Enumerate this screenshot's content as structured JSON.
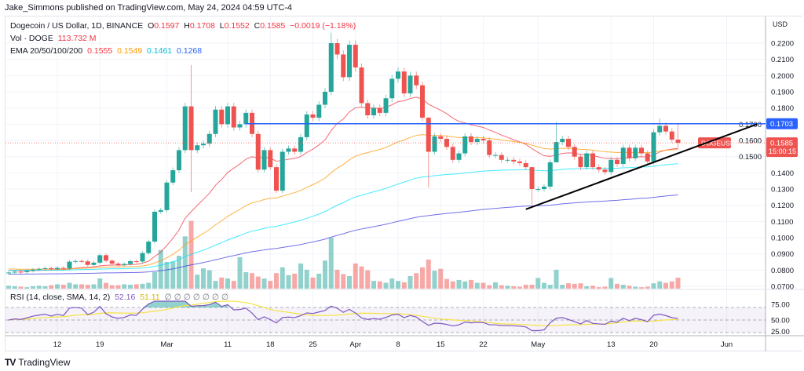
{
  "header": {
    "published": "Jake_Simmons published on TradingView.com, May 24, 2024 04:59 UTC-4"
  },
  "legend": {
    "symbol": "Dogecoin / US Dollar, 1D, BINANCE",
    "o_label": "O",
    "o": "0.1597",
    "h_label": "H",
    "h": "0.1708",
    "l_label": "L",
    "l": "0.1552",
    "c_label": "C",
    "c": "0.1585",
    "change": "−0.0019 (−1.18%)",
    "vol_label": "Vol · DOGE",
    "vol": "113.732 M",
    "ema_label": "EMA 20/50/100/200",
    "ema20": "0.1555",
    "ema50": "0.1549",
    "ema100": "0.1461",
    "ema200": "0.1268"
  },
  "rsi_legend": {
    "label": "RSI (14, close, SMA, 14, 2)",
    "rsi": "52.16",
    "sma": "51.11",
    "na": "∅"
  },
  "price_axis": {
    "currency": "USD",
    "ticks": [
      "0.2200",
      "0.2100",
      "0.2000",
      "0.1900",
      "0.1800",
      "0.1700",
      "0.1600",
      "0.1500",
      "0.1400",
      "0.1300",
      "0.1200",
      "0.1100",
      "0.1000",
      "0.0900",
      "0.0800",
      "0.0700"
    ],
    "level_label": "0.1703",
    "last_price": "0.1585",
    "countdown": "15:00:15",
    "symbol_tag": "DOGEUSD"
  },
  "rsi_axis": {
    "ticks": [
      "75.00",
      "50.00",
      "25.00"
    ]
  },
  "time_axis": {
    "ticks": [
      {
        "label": "12",
        "date": "2024-02-12"
      },
      {
        "label": "19",
        "date": "2024-02-19"
      },
      {
        "label": "Mar",
        "date": "2024-03-01"
      },
      {
        "label": "11",
        "date": "2024-03-11"
      },
      {
        "label": "18",
        "date": "2024-03-18"
      },
      {
        "label": "25",
        "date": "2024-03-25"
      },
      {
        "label": "Apr",
        "date": "2024-04-01"
      },
      {
        "label": "8",
        "date": "2024-04-08"
      },
      {
        "label": "15",
        "date": "2024-04-15"
      },
      {
        "label": "22",
        "date": "2024-04-22"
      },
      {
        "label": "May",
        "date": "2024-05-01"
      },
      {
        "label": "13",
        "date": "2024-05-13"
      },
      {
        "label": "20",
        "date": "2024-05-20"
      },
      {
        "label": "Jun",
        "date": "2024-06-01"
      }
    ]
  },
  "logo": {
    "text": "TradingView"
  },
  "colors": {
    "up": "#26a69a",
    "down": "#ef5350",
    "ema20": "#f23645",
    "ema50": "#ff9800",
    "ema100": "#00e5ff",
    "ema200": "#3f3fe0",
    "level": "#2962ff",
    "trend": "#000000",
    "rsi": "#7e57c2",
    "rsi_sma": "#f5e342"
  },
  "chart_data": {
    "type": "candlestick",
    "symbol": "DOGEUSD",
    "start_date": "2024-02-04",
    "ylim": [
      0.065,
      0.225
    ],
    "closes": [
      0.0785,
      0.079,
      0.0788,
      0.0795,
      0.0803,
      0.0808,
      0.0812,
      0.0806,
      0.0814,
      0.081,
      0.0852,
      0.0856,
      0.0854,
      0.0832,
      0.0846,
      0.0892,
      0.0858,
      0.084,
      0.0832,
      0.0838,
      0.0855,
      0.0853,
      0.0905,
      0.0976,
      0.116,
      0.117,
      0.134,
      0.1416,
      0.154,
      0.181,
      0.154,
      0.157,
      0.158,
      0.164,
      0.179,
      0.17,
      0.181,
      0.168,
      0.17,
      0.177,
      0.164,
      0.142,
      0.154,
      0.1435,
      0.129,
      0.153,
      0.155,
      0.153,
      0.162,
      0.176,
      0.174,
      0.182,
      0.19,
      0.22,
      0.213,
      0.199,
      0.219,
      0.205,
      0.183,
      0.1755,
      0.18,
      0.177,
      0.186,
      0.198,
      0.2025,
      0.189,
      0.2,
      0.194,
      0.174,
      0.153,
      0.1625,
      0.161,
      0.156,
      0.148,
      0.152,
      0.1625,
      0.159,
      0.161,
      0.16,
      0.151,
      0.151,
      0.148,
      0.148,
      0.147,
      0.146,
      0.1435,
      0.13,
      0.13,
      0.1315,
      0.1465,
      0.159,
      0.161,
      0.156,
      0.15,
      0.1435,
      0.152,
      0.1435,
      0.142,
      0.1405,
      0.148,
      0.1455,
      0.1555,
      0.149,
      0.1555,
      0.152,
      0.147,
      0.165,
      0.169,
      0.1655,
      0.1605,
      0.1585
    ],
    "volumes_m": [
      30,
      25,
      20,
      15,
      25,
      30,
      25,
      35,
      45,
      40,
      60,
      45,
      45,
      40,
      45,
      105,
      60,
      35,
      35,
      45,
      40,
      45,
      50,
      60,
      170,
      400,
      275,
      280,
      340,
      540,
      700,
      145,
      210,
      190,
      80,
      115,
      105,
      80,
      325,
      170,
      160,
      125,
      105,
      80,
      160,
      220,
      140,
      155,
      260,
      195,
      115,
      155,
      290,
      525,
      195,
      150,
      130,
      260,
      230,
      190,
      80,
      75,
      60,
      105,
      80,
      65,
      130,
      160,
      220,
      300,
      185,
      205,
      100,
      75,
      90,
      75,
      90,
      60,
      60,
      35,
      65,
      35,
      30,
      25,
      20,
      40,
      40,
      110,
      60,
      40,
      195,
      40,
      55,
      50,
      55,
      25,
      30,
      15,
      20,
      110,
      50,
      40,
      30,
      20,
      15,
      20,
      55,
      75,
      60,
      75,
      113.732
    ],
    "wick_overrides": {
      "2024-03-05": [
        0.2065,
        0.128
      ],
      "2024-03-28": [
        0.2265,
        0.188
      ],
      "2024-04-13": [
        0.1745,
        0.131
      ],
      "2024-04-30": [
        0.1435,
        0.1205
      ],
      "2024-05-04": [
        0.1715,
        0.147
      ],
      "2024-05-21": [
        0.1735,
        0.163
      ],
      "2024-05-24": [
        0.1708,
        0.1552
      ]
    },
    "ema_start": {
      "ema20": 0.08,
      "ema50": 0.0808,
      "ema100": 0.08,
      "ema200": 0.0775
    },
    "horizontal_level": 0.1703,
    "trendline": [
      {
        "date": "2024-04-29",
        "price": 0.1175
      },
      {
        "date": "2024-06-06",
        "price": 0.17
      }
    ],
    "rsi": {
      "period": 14,
      "sma": 14,
      "levels": [
        70,
        50,
        30
      ],
      "ylim": [
        20,
        80
      ]
    }
  }
}
